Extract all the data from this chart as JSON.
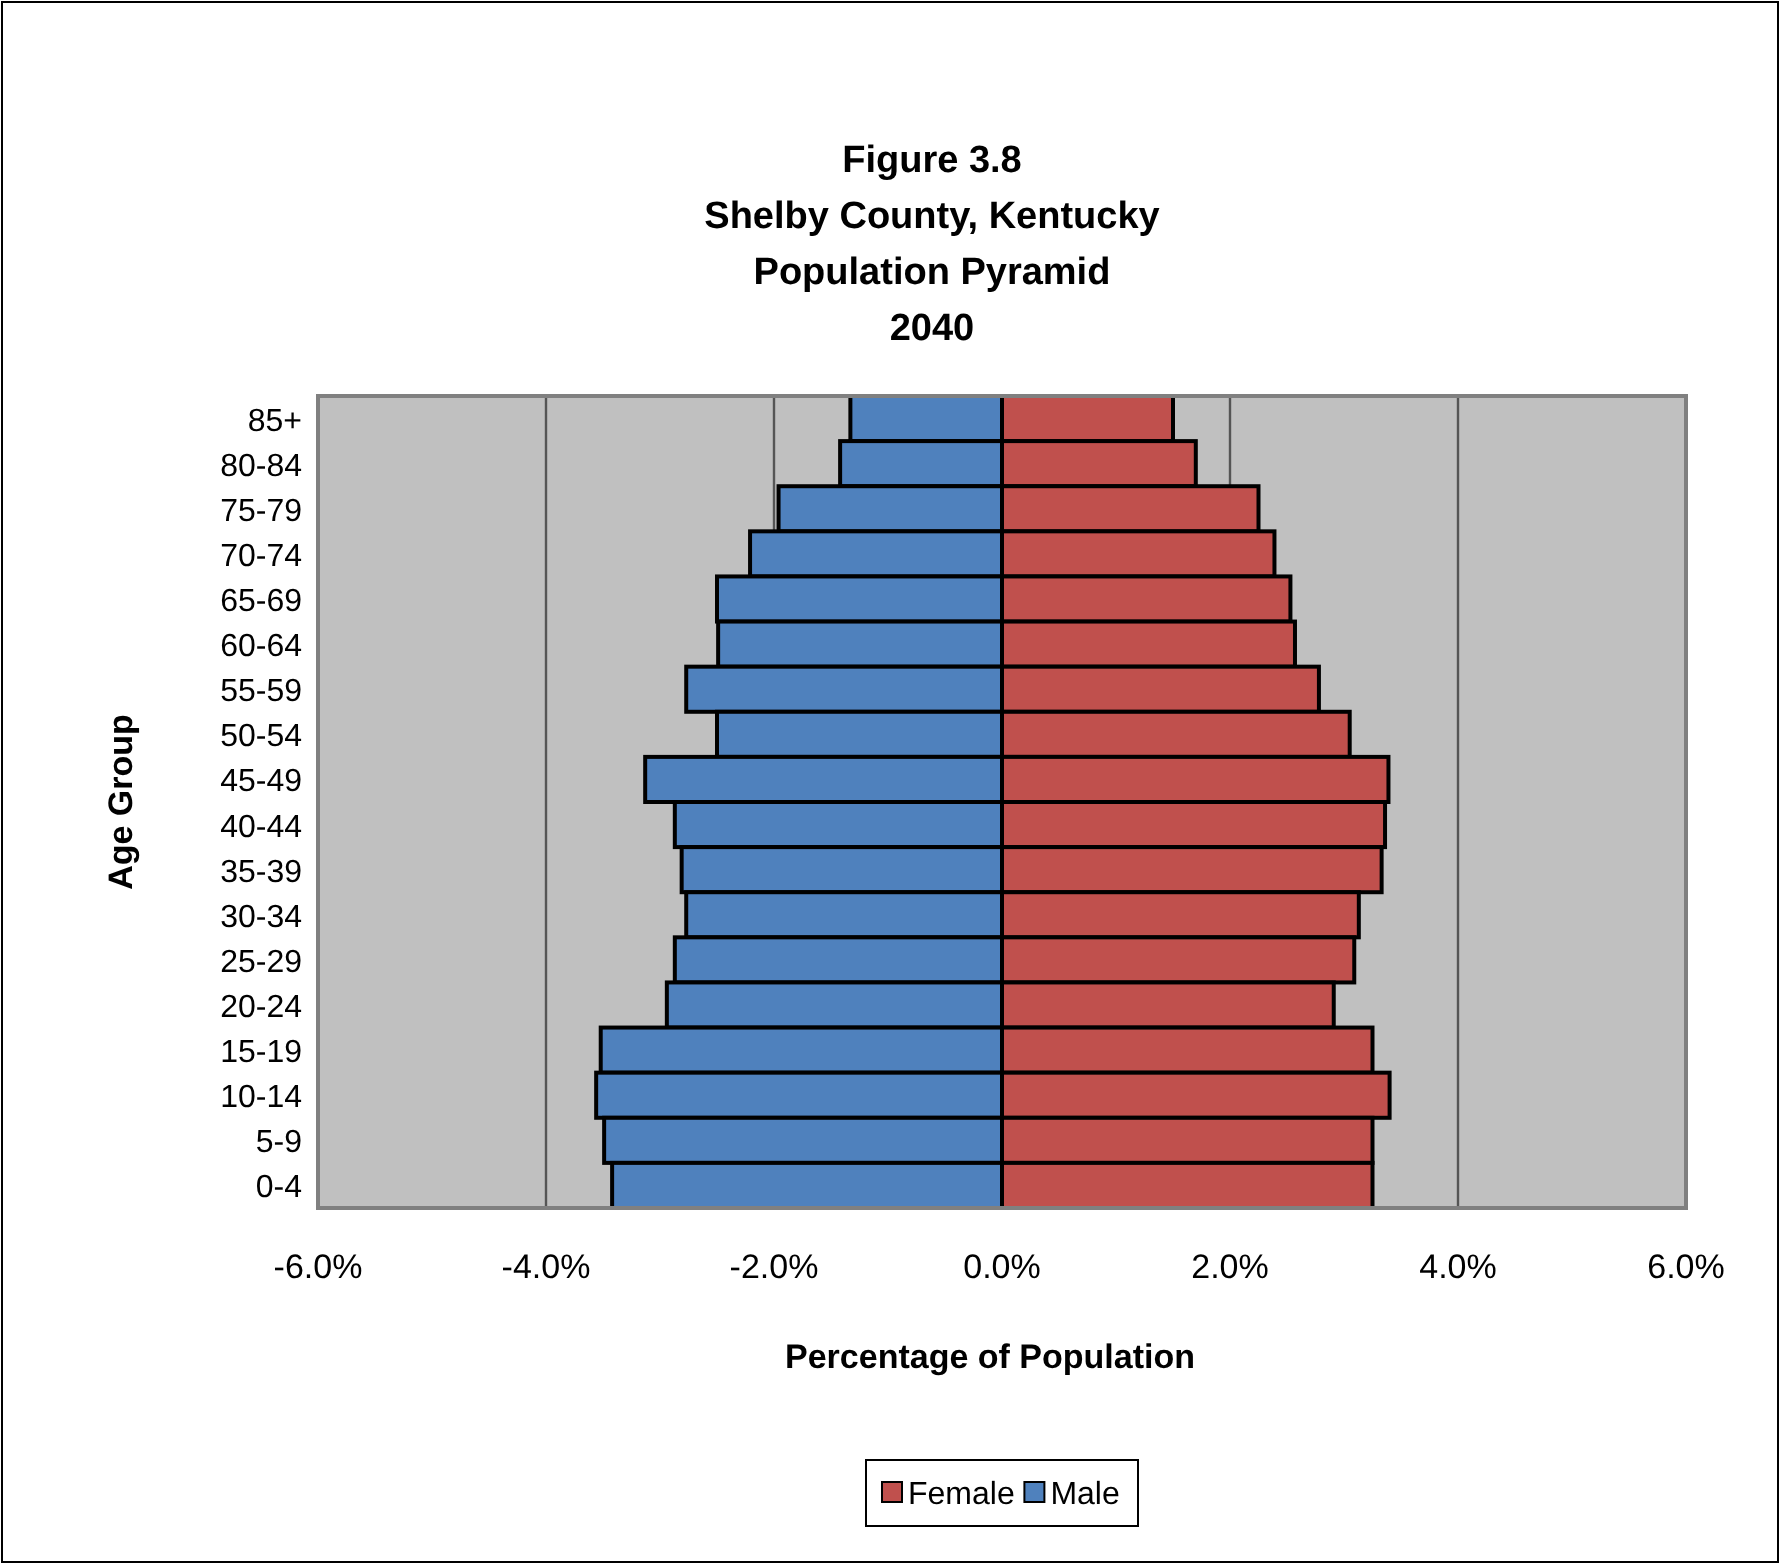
{
  "chart_data": {
    "type": "bar",
    "orientation": "horizontal",
    "stacked": true,
    "title": "Figure 3.8\nShelby County, Kentucky\nPopulation Pyramid\n2040",
    "xlabel": "Percentage of Population",
    "ylabel": "Age Group",
    "categories": [
      "85+",
      "80-84",
      "75-79",
      "70-74",
      "65-69",
      "60-64",
      "55-59",
      "50-54",
      "45-49",
      "40-44",
      "35-39",
      "30-34",
      "25-29",
      "20-24",
      "15-19",
      "10-14",
      "5-9",
      "0-4"
    ],
    "series": [
      {
        "name": "Female",
        "color": "#c0504d",
        "values": [
          1.5,
          1.7,
          2.25,
          2.39,
          2.53,
          2.57,
          2.78,
          3.05,
          3.39,
          3.36,
          3.33,
          3.13,
          3.09,
          2.91,
          3.25,
          3.4,
          3.25,
          3.25
        ]
      },
      {
        "name": "Male",
        "color": "#4f81bd",
        "values": [
          -1.33,
          -1.42,
          -1.96,
          -2.21,
          -2.5,
          -2.49,
          -2.77,
          -2.5,
          -3.13,
          -2.87,
          -2.81,
          -2.77,
          -2.87,
          -2.94,
          -3.52,
          -3.56,
          -3.49,
          -3.42
        ]
      }
    ],
    "xlim": [
      -6,
      6
    ],
    "xticks": [
      {
        "value": -6,
        "label": "-6.0%"
      },
      {
        "value": -4,
        "label": "-4.0%"
      },
      {
        "value": -2,
        "label": "-2.0%"
      },
      {
        "value": 0,
        "label": "0.0%"
      },
      {
        "value": 2,
        "label": "2.0%"
      },
      {
        "value": 4,
        "label": "4.0%"
      },
      {
        "value": 6,
        "label": "6.0%"
      }
    ],
    "grid": "x",
    "legend": "bottom"
  }
}
